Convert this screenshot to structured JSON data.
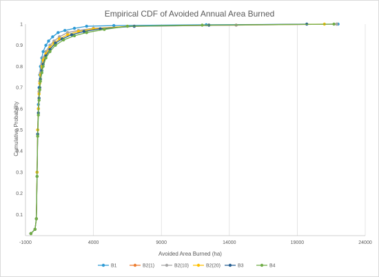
{
  "chart_data": {
    "type": "line",
    "title": "Empirical CDF of Avoided Annual Area Burned",
    "xlabel": "Avoided Area Burned (ha)",
    "ylabel": "Cumulative Probability",
    "xlim": [
      -1000,
      24000
    ],
    "ylim": [
      0,
      1
    ],
    "x_ticks": [
      "-1000",
      "4000",
      "9000",
      "14000",
      "19000",
      "24000"
    ],
    "y_ticks": [
      "0.1",
      "0.2",
      "0.3",
      "0.4",
      "0.5",
      "0.6",
      "0.7",
      "0.8",
      "0.9",
      "1"
    ],
    "grid": "vertical",
    "legend_position": "bottom",
    "series": [
      {
        "name": "B1",
        "color": "#2e9bd6",
        "x": [
          -600,
          -300,
          -200,
          -150,
          -100,
          -50,
          0,
          50,
          100,
          200,
          300,
          500,
          700,
          1000,
          1400,
          1900,
          2600,
          3500,
          5500,
          12300,
          22000
        ],
        "y": [
          0.01,
          0.03,
          0.08,
          0.3,
          0.5,
          0.62,
          0.7,
          0.76,
          0.8,
          0.84,
          0.87,
          0.9,
          0.92,
          0.94,
          0.96,
          0.97,
          0.98,
          0.99,
          0.993,
          0.997,
          1.0
        ]
      },
      {
        "name": "B2(1)",
        "color": "#ed7d31",
        "x": [
          -600,
          -300,
          -200,
          -150,
          -100,
          -50,
          0,
          50,
          100,
          200,
          300,
          500,
          800,
          1100,
          1500,
          2100,
          2900,
          4000,
          7000,
          14500,
          21900
        ],
        "y": [
          0.01,
          0.03,
          0.08,
          0.3,
          0.5,
          0.6,
          0.68,
          0.73,
          0.77,
          0.81,
          0.84,
          0.87,
          0.9,
          0.92,
          0.94,
          0.96,
          0.97,
          0.98,
          0.99,
          0.995,
          1.0
        ]
      },
      {
        "name": "B2(10)",
        "color": "#a5a5a5",
        "x": [
          -600,
          -300,
          -200,
          -150,
          -100,
          -50,
          0,
          50,
          100,
          200,
          300,
          500,
          800,
          1100,
          1500,
          2100,
          2900,
          4000,
          7000,
          14500,
          21900
        ],
        "y": [
          0.01,
          0.03,
          0.08,
          0.3,
          0.5,
          0.6,
          0.68,
          0.73,
          0.77,
          0.81,
          0.84,
          0.87,
          0.9,
          0.92,
          0.94,
          0.96,
          0.97,
          0.98,
          0.99,
          0.995,
          1.0
        ]
      },
      {
        "name": "B2(20)",
        "color": "#ffc000",
        "x": [
          -600,
          -300,
          -200,
          -150,
          -100,
          -50,
          0,
          50,
          100,
          200,
          300,
          500,
          800,
          1100,
          1500,
          2100,
          2900,
          4000,
          6500,
          12500,
          21000
        ],
        "y": [
          0.01,
          0.03,
          0.08,
          0.3,
          0.5,
          0.6,
          0.67,
          0.72,
          0.76,
          0.8,
          0.83,
          0.86,
          0.89,
          0.91,
          0.93,
          0.95,
          0.965,
          0.978,
          0.99,
          0.995,
          1.0
        ]
      },
      {
        "name": "B3",
        "color": "#255e91",
        "x": [
          -600,
          -300,
          -200,
          -150,
          -100,
          -50,
          0,
          50,
          100,
          200,
          300,
          500,
          800,
          1200,
          1700,
          2400,
          3300,
          4500,
          7000,
          12500,
          19700
        ],
        "y": [
          0.01,
          0.03,
          0.08,
          0.28,
          0.48,
          0.58,
          0.65,
          0.7,
          0.74,
          0.78,
          0.81,
          0.85,
          0.88,
          0.91,
          0.93,
          0.95,
          0.965,
          0.978,
          0.99,
          0.995,
          1.0
        ]
      },
      {
        "name": "B4",
        "color": "#70ad47",
        "x": [
          -600,
          -300,
          -200,
          -150,
          -100,
          -50,
          0,
          50,
          100,
          200,
          300,
          500,
          800,
          1200,
          1800,
          2600,
          3500,
          4800,
          6500,
          12000,
          21700
        ],
        "y": [
          0.01,
          0.03,
          0.08,
          0.28,
          0.47,
          0.57,
          0.64,
          0.69,
          0.73,
          0.77,
          0.8,
          0.84,
          0.87,
          0.9,
          0.925,
          0.945,
          0.96,
          0.975,
          0.99,
          0.995,
          1.0
        ]
      }
    ]
  }
}
